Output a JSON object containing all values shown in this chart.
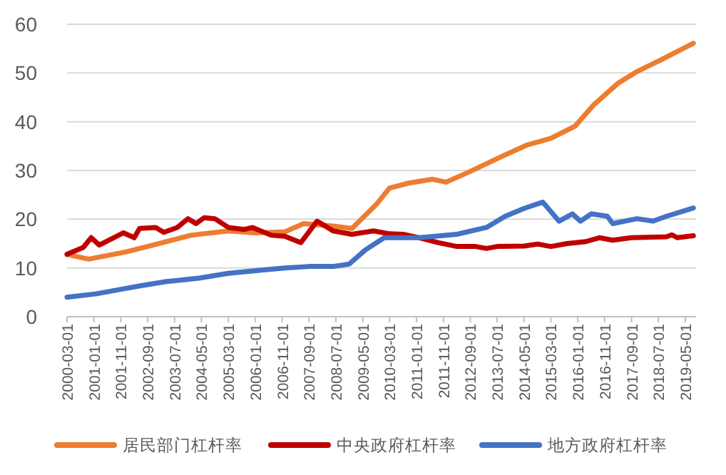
{
  "chart_data": {
    "type": "line",
    "xlim": [
      "2000-03-01",
      "2019-09-01"
    ],
    "xticks": [
      "2000-03-01",
      "2001-01-01",
      "2001-11-01",
      "2002-09-01",
      "2003-07-01",
      "2004-05-01",
      "2005-03-01",
      "2006-01-01",
      "2006-11-01",
      "2007-09-01",
      "2008-07-01",
      "2009-05-01",
      "2010-03-01",
      "2011-01-01",
      "2011-11-01",
      "2012-09-01",
      "2013-07-01",
      "2014-05-01",
      "2015-03-01",
      "2016-01-01",
      "2016-11-01",
      "2017-09-01",
      "2018-07-01",
      "2019-05-01"
    ],
    "ylim": [
      0,
      60
    ],
    "yticks": [
      0,
      10,
      20,
      30,
      40,
      50,
      60
    ],
    "grid": "y",
    "legend": "bottom",
    "marker": "none",
    "line_style": "solid",
    "series": [
      {
        "name": "居民部门杠杆率",
        "color": "#ed7d31",
        "x": [
          "2000-03",
          "2000-11",
          "2002-01",
          "2002-11",
          "2004-01",
          "2005-03",
          "2006-01",
          "2006-12",
          "2007-07",
          "2008-06",
          "2009-01",
          "2009-10",
          "2010-03",
          "2010-10",
          "2011-07",
          "2011-12",
          "2012-09",
          "2013-08",
          "2014-06",
          "2015-03",
          "2015-12",
          "2016-07",
          "2017-04",
          "2017-11",
          "2018-08",
          "2019-08"
        ],
        "values": [
          12.8,
          11.8,
          13.3,
          14.7,
          16.7,
          17.6,
          17.2,
          17.4,
          19.1,
          18.6,
          18.1,
          23.0,
          26.4,
          27.4,
          28.2,
          27.6,
          29.8,
          32.7,
          35.2,
          36.6,
          39.1,
          43.5,
          47.9,
          50.3,
          52.7,
          56.1
        ]
      },
      {
        "name": "中央政府杠杆率",
        "color": "#c00000",
        "x": [
          "2000-03",
          "2000-09",
          "2000-12",
          "2001-03",
          "2001-12",
          "2002-04",
          "2002-06",
          "2002-12",
          "2003-03",
          "2003-08",
          "2003-12",
          "2004-03",
          "2004-06",
          "2004-10",
          "2005-03",
          "2005-09",
          "2005-12",
          "2006-07",
          "2006-12",
          "2007-06",
          "2007-12",
          "2008-06",
          "2009-01",
          "2009-09",
          "2010-03",
          "2010-08",
          "2011-02",
          "2011-09",
          "2012-04",
          "2012-11",
          "2013-03",
          "2013-07",
          "2014-05",
          "2014-10",
          "2015-03",
          "2015-09",
          "2016-04",
          "2016-09",
          "2017-02",
          "2017-09",
          "2018-10",
          "2018-12",
          "2019-02",
          "2019-08"
        ],
        "values": [
          12.8,
          14.2,
          16.2,
          14.7,
          17.2,
          16.2,
          18.1,
          18.3,
          17.3,
          18.3,
          20.1,
          19.1,
          20.3,
          20.1,
          18.3,
          17.9,
          18.3,
          16.7,
          16.5,
          15.2,
          19.6,
          17.6,
          16.9,
          17.6,
          17.0,
          16.9,
          16.2,
          15.2,
          14.4,
          14.4,
          14.0,
          14.4,
          14.5,
          14.9,
          14.4,
          15.0,
          15.4,
          16.2,
          15.7,
          16.2,
          16.4,
          16.8,
          16.2,
          16.6
        ]
      },
      {
        "name": "地方政府杠杆率",
        "color": "#4472c4",
        "x": [
          "2000-03",
          "2001-02",
          "2001-10",
          "2002-07",
          "2003-04",
          "2004-04",
          "2005-03",
          "2006-04",
          "2006-12",
          "2007-09",
          "2008-06",
          "2008-12",
          "2009-06",
          "2010-01",
          "2011-02",
          "2012-04",
          "2013-03",
          "2013-10",
          "2014-05",
          "2014-12",
          "2015-06",
          "2015-11",
          "2016-02",
          "2016-06",
          "2016-12",
          "2017-02",
          "2017-11",
          "2018-05",
          "2018-10",
          "2019-08"
        ],
        "values": [
          4.0,
          4.7,
          5.5,
          6.4,
          7.2,
          7.9,
          8.9,
          9.6,
          10.0,
          10.3,
          10.3,
          10.8,
          13.7,
          16.2,
          16.2,
          16.9,
          18.3,
          20.6,
          22.2,
          23.5,
          19.6,
          21.1,
          19.6,
          21.1,
          20.6,
          19.1,
          20.1,
          19.6,
          20.6,
          22.3
        ]
      }
    ]
  }
}
